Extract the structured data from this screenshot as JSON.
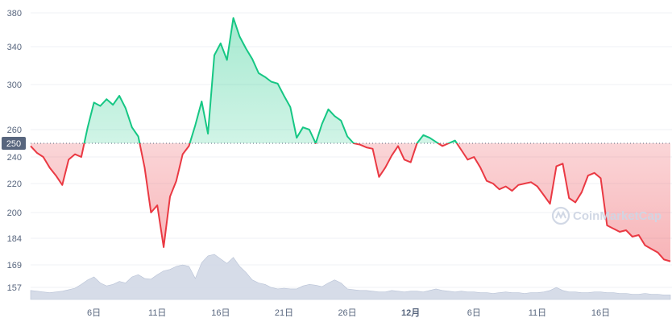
{
  "chart_data": {
    "type": "line",
    "reference_value": 250,
    "reference_label": "250",
    "y_ticks": [
      157,
      169,
      184,
      200,
      220,
      240,
      260,
      300,
      340,
      380
    ],
    "y_tick_labels": [
      "157",
      "169",
      "184",
      "200",
      "220",
      "240",
      "260",
      "300",
      "340",
      "380"
    ],
    "ylim": [
      150,
      385
    ],
    "x_ticks": [
      "6日",
      "11日",
      "16日",
      "21日",
      "26日",
      "12月",
      "6日",
      "11日",
      "16日"
    ],
    "x_tick_positions": [
      6,
      11,
      16,
      21,
      26,
      31,
      36,
      41,
      46
    ],
    "xlim": [
      1,
      51.5
    ],
    "price": {
      "x": [
        1.0,
        1.5,
        2.0,
        2.5,
        3.0,
        3.5,
        4.0,
        4.5,
        5.0,
        5.5,
        6.0,
        6.5,
        7.0,
        7.5,
        8.0,
        8.5,
        9.0,
        9.5,
        10.0,
        10.5,
        11.0,
        11.5,
        12.0,
        12.5,
        13.0,
        13.5,
        14.0,
        14.5,
        15.0,
        15.5,
        16.0,
        16.5,
        17.0,
        17.5,
        18.0,
        18.5,
        19.0,
        19.5,
        20.0,
        20.5,
        21.0,
        21.5,
        22.0,
        22.5,
        23.0,
        23.5,
        24.0,
        24.5,
        25.0,
        25.5,
        26.0,
        26.5,
        27.0,
        27.5,
        28.0,
        28.5,
        29.0,
        29.5,
        30.0,
        30.5,
        31.0,
        31.5,
        32.0,
        32.5,
        33.0,
        33.5,
        34.0,
        34.5,
        35.0,
        35.5,
        36.0,
        36.5,
        37.0,
        37.5,
        38.0,
        38.5,
        39.0,
        39.5,
        40.0,
        40.5,
        41.0,
        41.5,
        42.0,
        42.5,
        43.0,
        43.5,
        44.0,
        44.5,
        45.0,
        45.5,
        46.0,
        46.5,
        47.0,
        47.5,
        48.0,
        48.5,
        49.0,
        49.5,
        50.0,
        50.5,
        51.0,
        51.5
      ],
      "y": [
        248,
        243,
        240,
        232,
        226,
        219,
        238,
        242,
        240,
        262,
        284,
        281,
        287,
        282,
        290,
        279,
        262,
        255,
        232,
        200,
        205,
        179,
        211,
        222,
        242,
        248,
        264,
        285,
        257,
        331,
        344,
        326,
        374,
        352,
        338,
        327,
        312,
        308,
        303,
        301,
        290,
        280,
        254,
        262,
        260,
        250,
        265,
        278,
        272,
        268,
        255,
        250,
        249,
        247,
        246,
        225,
        232,
        241,
        248,
        238,
        236,
        250,
        256,
        254,
        251,
        248,
        250,
        252,
        245,
        238,
        240,
        232,
        222,
        220,
        216,
        218,
        215,
        219,
        220,
        221,
        218,
        212,
        206,
        233,
        235,
        210,
        207,
        214,
        226,
        228,
        224,
        192,
        190,
        188,
        189,
        185,
        186,
        180,
        178,
        176,
        172,
        171
      ]
    },
    "volume": {
      "x": [
        1.0,
        1.5,
        2.0,
        2.5,
        3.0,
        3.5,
        4.0,
        4.5,
        5.0,
        5.5,
        6.0,
        6.5,
        7.0,
        7.5,
        8.0,
        8.5,
        9.0,
        9.5,
        10.0,
        10.5,
        11.0,
        11.5,
        12.0,
        12.5,
        13.0,
        13.5,
        14.0,
        14.5,
        15.0,
        15.5,
        16.0,
        16.5,
        17.0,
        17.5,
        18.0,
        18.5,
        19.0,
        19.5,
        20.0,
        20.5,
        21.0,
        21.5,
        22.0,
        22.5,
        23.0,
        23.5,
        24.0,
        24.5,
        25.0,
        25.5,
        26.0,
        26.5,
        27.0,
        27.5,
        28.0,
        28.5,
        29.0,
        29.5,
        30.0,
        30.5,
        31.0,
        31.5,
        32.0,
        32.5,
        33.0,
        33.5,
        34.0,
        34.5,
        35.0,
        35.5,
        36.0,
        36.5,
        37.0,
        37.5,
        38.0,
        38.5,
        39.0,
        39.5,
        40.0,
        40.5,
        41.0,
        41.5,
        42.0,
        42.5,
        43.0,
        43.5,
        44.0,
        44.5,
        45.0,
        45.5,
        46.0,
        46.5,
        47.0,
        47.5,
        48.0,
        48.5,
        49.0,
        49.5,
        50.0,
        50.5,
        51.0,
        51.5
      ],
      "v": [
        12,
        11,
        10,
        9,
        10,
        11,
        13,
        15,
        20,
        26,
        30,
        22,
        18,
        20,
        24,
        22,
        30,
        33,
        28,
        27,
        33,
        38,
        40,
        44,
        46,
        44,
        28,
        49,
        58,
        60,
        54,
        48,
        56,
        44,
        36,
        26,
        22,
        20,
        16,
        14,
        15,
        14,
        14,
        18,
        20,
        19,
        17,
        22,
        26,
        22,
        14,
        13,
        12,
        12,
        11,
        10,
        10,
        12,
        11,
        10,
        11,
        11,
        10,
        12,
        14,
        12,
        11,
        10,
        11,
        10,
        10,
        9,
        9,
        8,
        9,
        10,
        9,
        9,
        8,
        9,
        9,
        10,
        12,
        16,
        12,
        10,
        10,
        9,
        9,
        10,
        10,
        9,
        9,
        8,
        8,
        7,
        7,
        8,
        7,
        7,
        6,
        6
      ]
    },
    "colors": {
      "up": "#16c784",
      "down": "#ea3943",
      "volume": "#cfd6e4",
      "grid": "#eff2f5",
      "axis_text": "#58667e",
      "ref_label_bg": "#58667e",
      "watermark": "#cfd6e4"
    },
    "grid": true,
    "legend": "none"
  },
  "watermark": {
    "text": "CoinMarketCap",
    "icon": "coinmarketcap-logo-icon"
  }
}
